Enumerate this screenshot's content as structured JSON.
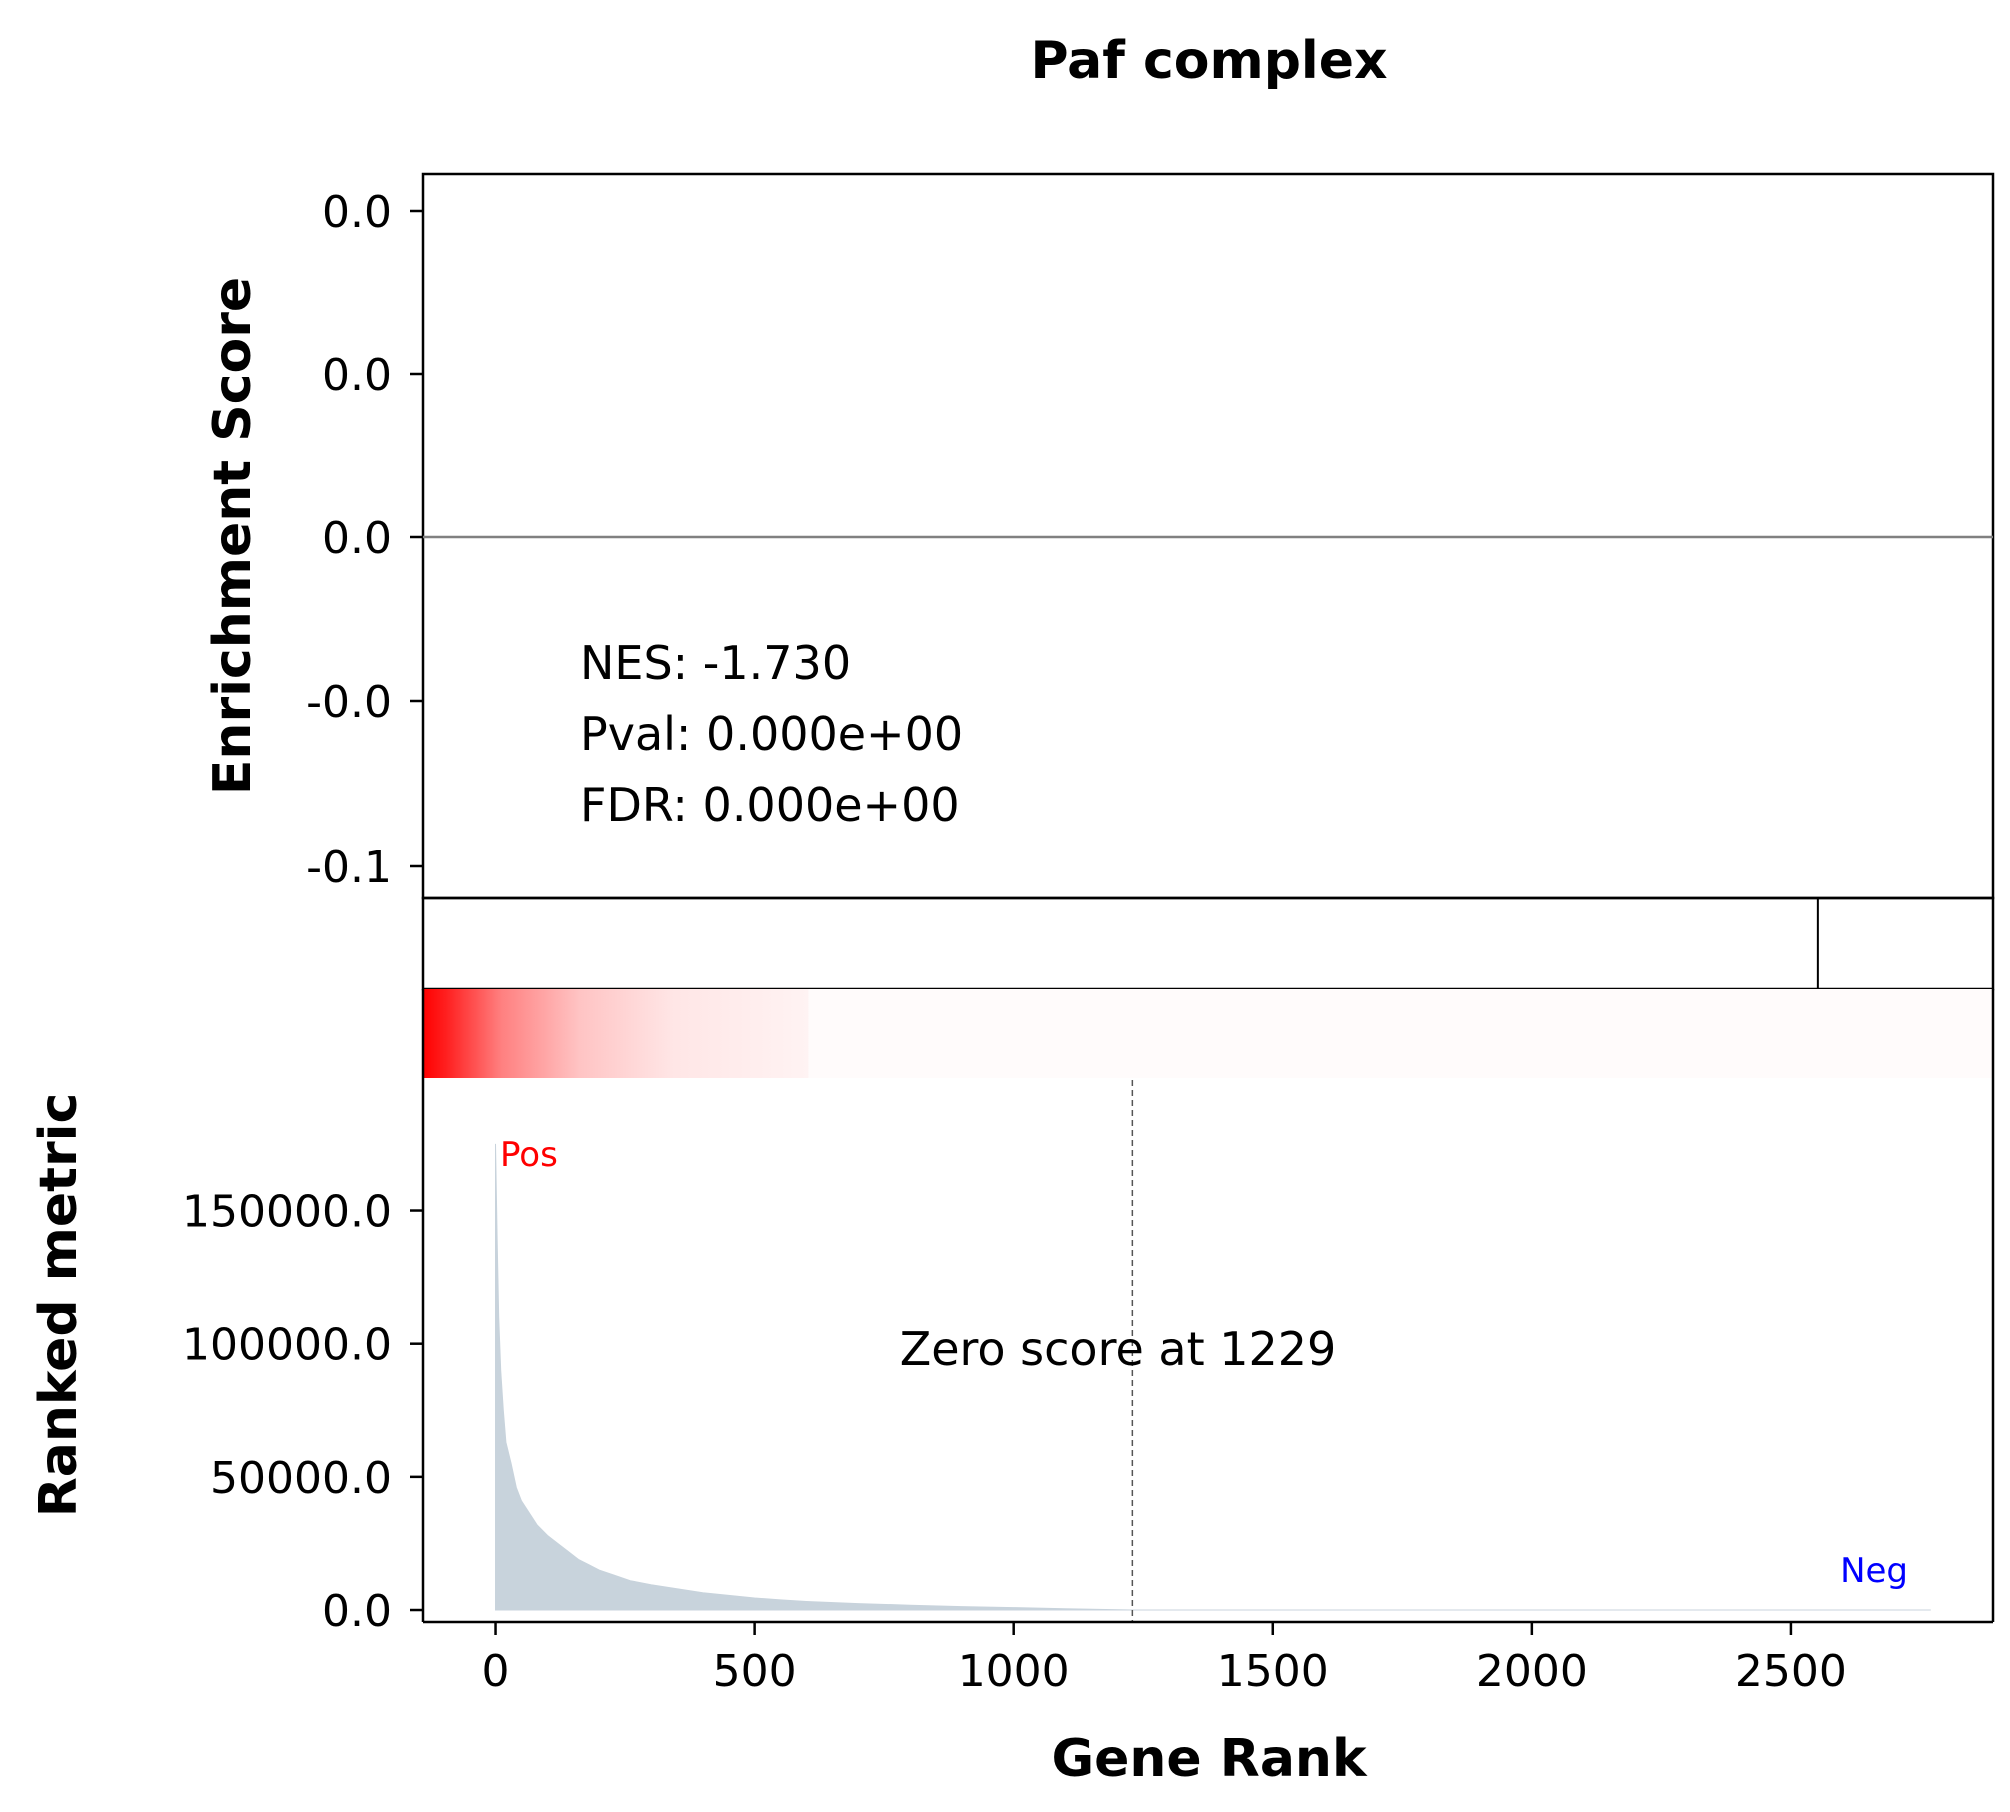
{
  "chart_data": {
    "type": "area",
    "title": "Paf complex",
    "colors": {
      "metric_fill": "#c8d3dc",
      "zero_line": "#808080",
      "pos_label": "#ff0000",
      "neg_label": "#0000ff",
      "heat_red": "#ff0000"
    },
    "enrichment_panel": {
      "ylabel": "Enrichment Score",
      "yticks": [
        "0.0",
        "0.0",
        "0.0",
        "-0.0",
        "-0.1"
      ],
      "zero_value": 0.0,
      "stats": {
        "nes": "NES: -1.730",
        "pval": "Pval: 0.000e+00",
        "fdr": "FDR: 0.000e+00"
      }
    },
    "hits_panel": {
      "hit_positions": [
        2552
      ]
    },
    "metric_panel": {
      "ylabel": "Ranked metric",
      "xlabel": "Gene Rank",
      "xlim": [
        -140,
        2890
      ],
      "ylim": [
        -4500,
        190000
      ],
      "xticks": [
        0,
        500,
        1000,
        1500,
        2000,
        2500
      ],
      "xtick_labels": [
        "0",
        "500",
        "1000",
        "1500",
        "2000",
        "2500"
      ],
      "yticks": [
        0,
        50000,
        100000,
        150000
      ],
      "ytick_labels": [
        "0.0",
        "50000.0",
        "100000.0",
        "150000.0"
      ],
      "zero_score_rank": 1229,
      "zero_score_label": "Zero score at 1229",
      "pos_label": "Pos",
      "neg_label": "Neg",
      "n_genes": 2770,
      "rank_metric": {
        "x": [
          0,
          3,
          6,
          10,
          15,
          20,
          30,
          40,
          50,
          60,
          70,
          80,
          90,
          100,
          120,
          140,
          160,
          180,
          200,
          230,
          260,
          300,
          350,
          400,
          450,
          500,
          550,
          600,
          700,
          800,
          900,
          1000,
          1100,
          1229,
          1500,
          2000,
          2500,
          2770
        ],
        "y": [
          175000,
          140000,
          110000,
          90000,
          75000,
          63000,
          55000,
          46000,
          41000,
          38000,
          35000,
          32000,
          30000,
          28000,
          25000,
          22000,
          19000,
          17000,
          15000,
          13000,
          11000,
          9500,
          8000,
          6500,
          5500,
          4500,
          3800,
          3200,
          2400,
          1800,
          1300,
          900,
          500,
          0,
          0,
          0,
          0,
          0
        ]
      }
    }
  }
}
